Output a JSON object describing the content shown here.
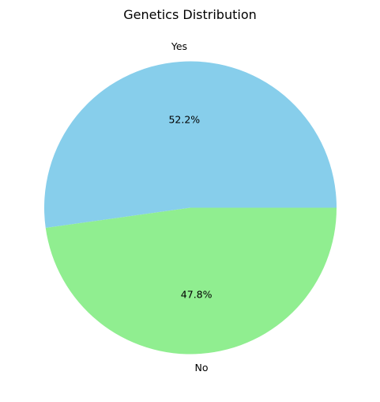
{
  "chart_data": {
    "type": "pie",
    "title": "Genetics Distribution",
    "slices": [
      {
        "label": "Yes",
        "value": 52.2,
        "pct_label": "52.2%",
        "color": "#87CEEB"
      },
      {
        "label": "No",
        "value": 47.8,
        "pct_label": "47.8%",
        "color": "#90EE90"
      }
    ],
    "start_angle": "3 o'clock",
    "direction": "counterclockwise",
    "legend": "none"
  }
}
